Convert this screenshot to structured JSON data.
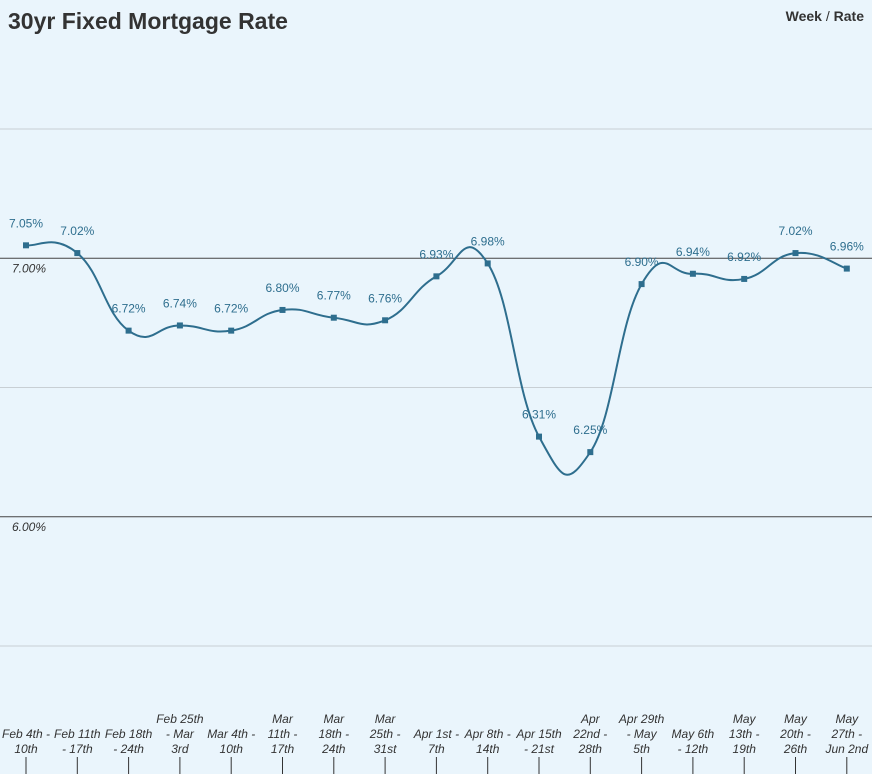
{
  "chart_data": {
    "type": "line",
    "title": "30yr Fixed Mortgage Rate",
    "legend": {
      "x_name": "Week",
      "separator": "/",
      "y_name": "Rate",
      "placement": "top-right"
    },
    "colors": {
      "line": "#2e6e8e",
      "labels": "#2e6e8e",
      "grid": "#c8cfd4",
      "zero_grid": "#444444",
      "axis_text": "#333333",
      "background": "#eaf5fc"
    },
    "ylim": [
      5.5,
      7.5
    ],
    "ytick_labels": [
      {
        "value": 7.0,
        "label": "7.00%"
      },
      {
        "value": 6.0,
        "label": "6.00%"
      }
    ],
    "grid": true,
    "categories": [
      [
        "Feb 4th -",
        "10th"
      ],
      [
        "Feb 11th",
        "- 17th"
      ],
      [
        "Feb 18th",
        "- 24th"
      ],
      [
        "Feb 25th",
        "- Mar",
        "3rd"
      ],
      [
        "Mar 4th -",
        "10th"
      ],
      [
        "Mar",
        "11th -",
        "17th"
      ],
      [
        "Mar",
        "18th -",
        "24th"
      ],
      [
        "Mar",
        "25th -",
        "31st"
      ],
      [
        "Apr 1st -",
        "7th"
      ],
      [
        "Apr 8th -",
        "14th"
      ],
      [
        "Apr 15th",
        "- 21st"
      ],
      [
        "Apr",
        "22nd -",
        "28th"
      ],
      [
        "Apr 29th",
        "- May",
        "5th"
      ],
      [
        "May 6th",
        "- 12th"
      ],
      [
        "May",
        "13th -",
        "19th"
      ],
      [
        "May",
        "20th -",
        "26th"
      ],
      [
        "May",
        "27th -",
        "Jun 2nd"
      ]
    ],
    "series": [
      {
        "values": [
          7.05,
          7.02,
          6.72,
          6.74,
          6.72,
          6.8,
          6.77,
          6.76,
          6.93,
          6.98,
          6.31,
          6.25,
          6.9,
          6.94,
          6.92,
          7.02,
          6.96
        ],
        "data_labels": [
          "7.05%",
          "7.02%",
          "6.72%",
          "6.74%",
          "6.72%",
          "6.80%",
          "6.77%",
          "6.76%",
          "6.93%",
          "6.98%",
          "6.31%",
          "6.25%",
          "6.90%",
          "6.94%",
          "6.92%",
          "7.02%",
          "6.96%"
        ]
      }
    ]
  }
}
